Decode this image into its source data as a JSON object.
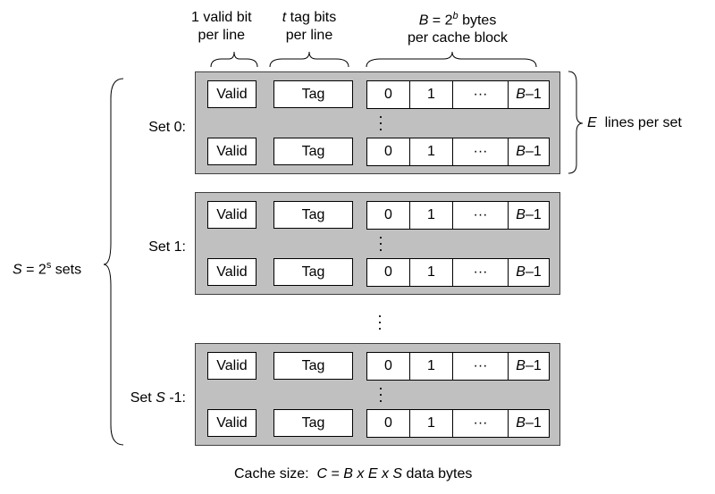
{
  "headers": {
    "valid": [
      "1 valid bit",
      "per line"
    ],
    "tag": {
      "var": "t",
      "rest": " tag bits",
      "line2": "per line"
    },
    "block": {
      "var": "B",
      "eq": " = 2",
      "sup": "b",
      "rest": " bytes",
      "line2": "per cache block"
    }
  },
  "side": {
    "lines_per_set": {
      "var": "E",
      "rest": "  lines per set"
    },
    "sets": {
      "var": "S",
      "eq": " = 2",
      "sup": "s",
      "rest": " sets"
    }
  },
  "cell_labels": {
    "valid": "Valid",
    "tag": "Tag",
    "byte0": "0",
    "byte1": "1",
    "ellipsis": "···",
    "last": {
      "var": "B",
      "rest": "–1"
    }
  },
  "sets": [
    {
      "name": "Set 0:"
    },
    {
      "name": "Set 1:"
    },
    {
      "name_prefix": "Set ",
      "name_var": "S",
      "name_suffix": " -1:"
    }
  ],
  "footer": {
    "prefix": "Cache size:  ",
    "c": "C",
    "eq": " = ",
    "b": "B",
    "x1": " x ",
    "e": "E",
    "x2": " x ",
    "s": "S",
    "suffix": " data bytes"
  }
}
